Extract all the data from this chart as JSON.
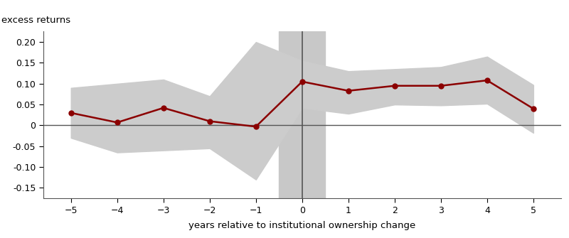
{
  "x": [
    -5,
    -4,
    -3,
    -2,
    -1,
    0,
    1,
    2,
    3,
    4,
    5
  ],
  "y": [
    0.03,
    0.007,
    0.042,
    0.01,
    -0.003,
    0.105,
    0.083,
    0.095,
    0.095,
    0.108,
    0.04
  ],
  "ci_upper": [
    0.09,
    0.1,
    0.11,
    0.07,
    0.2,
    0.155,
    0.13,
    0.135,
    0.14,
    0.165,
    0.097
  ],
  "ci_lower": [
    -0.03,
    -0.065,
    -0.06,
    -0.055,
    -0.13,
    0.042,
    0.028,
    0.05,
    0.048,
    0.052,
    -0.018
  ],
  "line_color": "#8B0000",
  "ci_color": "#CCCCCC",
  "zero_line_color": "#555555",
  "vshade_color": "#C8C8C8",
  "xlabel": "years relative to institutional ownership change",
  "ylabel": "excess returns",
  "xlim": [
    -5.6,
    5.6
  ],
  "ylim": [
    -0.175,
    0.225
  ],
  "yticks": [
    -0.15,
    -0.1,
    -0.05,
    0,
    0.05,
    0.1,
    0.15,
    0.2
  ],
  "xticks": [
    -5,
    -4,
    -3,
    -2,
    -1,
    0,
    1,
    2,
    3,
    4,
    5
  ],
  "figsize": [
    8.0,
    3.35
  ],
  "dpi": 100
}
